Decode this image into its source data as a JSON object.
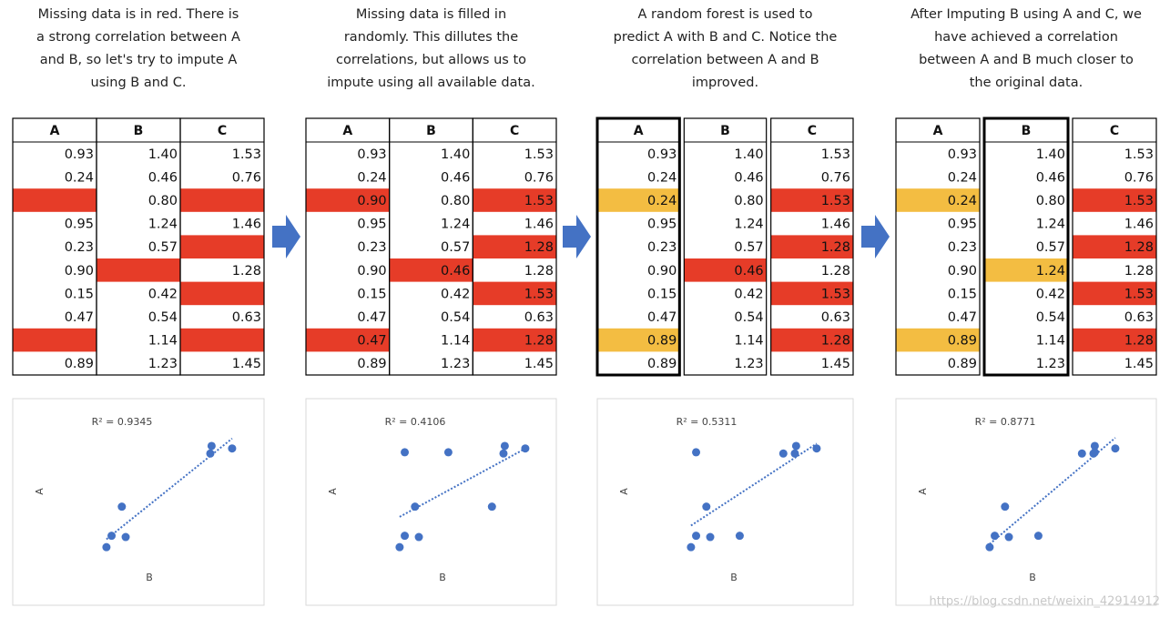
{
  "panels": [
    {
      "caption": [
        "Missing data is in red. There is",
        "a strong correlation between A",
        "and B, so let's try to impute A",
        "using B and C."
      ],
      "table": {
        "columns": [
          "A",
          "B",
          "C"
        ],
        "separated_columns": false,
        "rows": [
          [
            "0.93",
            "1.40",
            "1.53"
          ],
          [
            "0.24",
            "0.46",
            "0.76"
          ],
          [
            null,
            "0.80",
            null
          ],
          [
            "0.95",
            "1.24",
            "1.46"
          ],
          [
            "0.23",
            "0.57",
            null
          ],
          [
            "0.90",
            null,
            "1.28"
          ],
          [
            "0.15",
            "0.42",
            null
          ],
          [
            "0.47",
            "0.54",
            "0.63"
          ],
          [
            null,
            "1.14",
            null
          ],
          [
            "0.89",
            "1.23",
            "1.45"
          ]
        ],
        "fills": [
          [
            null,
            null,
            null
          ],
          [
            null,
            null,
            null
          ],
          [
            "missing",
            null,
            "missing"
          ],
          [
            null,
            null,
            null
          ],
          [
            null,
            null,
            "missing"
          ],
          [
            null,
            "missing",
            null
          ],
          [
            null,
            null,
            "missing"
          ],
          [
            null,
            null,
            null
          ],
          [
            "missing",
            null,
            "missing"
          ],
          [
            null,
            null,
            null
          ]
        ]
      },
      "chart": {
        "type": "scatter",
        "r2_label": "R² = 0.9345",
        "x_label": "B",
        "y_label": "A",
        "color": "#4472c4",
        "xlim": [
          0.3,
          1.5
        ],
        "ylim": [
          0,
          1
        ],
        "x": [
          1.4,
          0.46,
          1.24,
          0.57,
          0.42,
          0.54,
          1.23
        ],
        "y": [
          0.93,
          0.24,
          0.95,
          0.23,
          0.15,
          0.47,
          0.89
        ]
      }
    },
    {
      "caption": [
        "Missing data is filled in",
        "randomly. This dillutes the",
        "correlations, but allows us to",
        "impute using all available data."
      ],
      "table": {
        "columns": [
          "A",
          "B",
          "C"
        ],
        "separated_columns": false,
        "rows": [
          [
            "0.93",
            "1.40",
            "1.53"
          ],
          [
            "0.24",
            "0.46",
            "0.76"
          ],
          [
            "0.90",
            "0.80",
            "1.53"
          ],
          [
            "0.95",
            "1.24",
            "1.46"
          ],
          [
            "0.23",
            "0.57",
            "1.28"
          ],
          [
            "0.90",
            "0.46",
            "1.28"
          ],
          [
            "0.15",
            "0.42",
            "1.53"
          ],
          [
            "0.47",
            "0.54",
            "0.63"
          ],
          [
            "0.47",
            "1.14",
            "1.28"
          ],
          [
            "0.89",
            "1.23",
            "1.45"
          ]
        ],
        "fills": [
          [
            null,
            null,
            null
          ],
          [
            null,
            null,
            null
          ],
          [
            "missing",
            null,
            "missing"
          ],
          [
            null,
            null,
            null
          ],
          [
            null,
            null,
            "missing"
          ],
          [
            null,
            "missing",
            null
          ],
          [
            null,
            null,
            "missing"
          ],
          [
            null,
            null,
            null
          ],
          [
            "missing",
            null,
            "missing"
          ],
          [
            null,
            null,
            null
          ]
        ]
      },
      "chart": {
        "type": "scatter",
        "r2_label": "R² = 0.4106",
        "x_label": "B",
        "y_label": "A",
        "color": "#4472c4",
        "xlim": [
          0.3,
          1.5
        ],
        "ylim": [
          0,
          1
        ],
        "x": [
          1.4,
          0.46,
          0.8,
          1.24,
          0.57,
          0.46,
          0.42,
          0.54,
          1.14,
          1.23
        ],
        "y": [
          0.93,
          0.24,
          0.9,
          0.95,
          0.23,
          0.9,
          0.15,
          0.47,
          0.47,
          0.89
        ]
      }
    },
    {
      "caption": [
        "A random forest is used to",
        "predict A with B and C. Notice the",
        "correlation between A and B",
        "improved."
      ],
      "table": {
        "columns": [
          "A",
          "B",
          "C"
        ],
        "separated_columns": true,
        "outlined_column": "A",
        "rows": [
          [
            "0.93",
            "1.40",
            "1.53"
          ],
          [
            "0.24",
            "0.46",
            "0.76"
          ],
          [
            "0.24",
            "0.80",
            "1.53"
          ],
          [
            "0.95",
            "1.24",
            "1.46"
          ],
          [
            "0.23",
            "0.57",
            "1.28"
          ],
          [
            "0.90",
            "0.46",
            "1.28"
          ],
          [
            "0.15",
            "0.42",
            "1.53"
          ],
          [
            "0.47",
            "0.54",
            "0.63"
          ],
          [
            "0.89",
            "1.14",
            "1.28"
          ],
          [
            "0.89",
            "1.23",
            "1.45"
          ]
        ],
        "fills": [
          [
            null,
            null,
            null
          ],
          [
            null,
            null,
            null
          ],
          [
            "imputed",
            null,
            "missing"
          ],
          [
            null,
            null,
            null
          ],
          [
            null,
            null,
            "missing"
          ],
          [
            null,
            "missing",
            null
          ],
          [
            null,
            null,
            "missing"
          ],
          [
            null,
            null,
            null
          ],
          [
            "imputed",
            null,
            "missing"
          ],
          [
            null,
            null,
            null
          ]
        ]
      },
      "chart": {
        "type": "scatter",
        "r2_label": "R² = 0.5311",
        "x_label": "B",
        "y_label": "A",
        "color": "#4472c4",
        "xlim": [
          0.3,
          1.5
        ],
        "ylim": [
          0,
          1
        ],
        "x": [
          1.4,
          0.46,
          0.8,
          1.24,
          0.57,
          0.46,
          0.42,
          0.54,
          1.14,
          1.23
        ],
        "y": [
          0.93,
          0.24,
          0.24,
          0.95,
          0.23,
          0.9,
          0.15,
          0.47,
          0.89,
          0.89
        ]
      }
    },
    {
      "caption": [
        "After Imputing B using A and C, we",
        "have achieved a correlation",
        "between A and B much closer to",
        "the original data."
      ],
      "table": {
        "columns": [
          "A",
          "B",
          "C"
        ],
        "separated_columns": true,
        "outlined_column": "B",
        "rows": [
          [
            "0.93",
            "1.40",
            "1.53"
          ],
          [
            "0.24",
            "0.46",
            "0.76"
          ],
          [
            "0.24",
            "0.80",
            "1.53"
          ],
          [
            "0.95",
            "1.24",
            "1.46"
          ],
          [
            "0.23",
            "0.57",
            "1.28"
          ],
          [
            "0.90",
            "1.24",
            "1.28"
          ],
          [
            "0.15",
            "0.42",
            "1.53"
          ],
          [
            "0.47",
            "0.54",
            "0.63"
          ],
          [
            "0.89",
            "1.14",
            "1.28"
          ],
          [
            "0.89",
            "1.23",
            "1.45"
          ]
        ],
        "fills": [
          [
            null,
            null,
            null
          ],
          [
            null,
            null,
            null
          ],
          [
            "imputed",
            null,
            "missing"
          ],
          [
            null,
            null,
            null
          ],
          [
            null,
            null,
            "missing"
          ],
          [
            null,
            "imputed",
            null
          ],
          [
            null,
            null,
            "missing"
          ],
          [
            null,
            null,
            null
          ],
          [
            "imputed",
            null,
            "missing"
          ],
          [
            null,
            null,
            null
          ]
        ]
      },
      "chart": {
        "type": "scatter",
        "r2_label": "R² = 0.8771",
        "x_label": "B",
        "y_label": "A",
        "color": "#4472c4",
        "xlim": [
          0.3,
          1.5
        ],
        "ylim": [
          0,
          1
        ],
        "x": [
          1.4,
          0.46,
          0.8,
          1.24,
          0.57,
          1.24,
          0.42,
          0.54,
          1.14,
          1.23
        ],
        "y": [
          0.93,
          0.24,
          0.24,
          0.95,
          0.23,
          0.9,
          0.15,
          0.47,
          0.89,
          0.89
        ]
      }
    }
  ],
  "fill_colors": {
    "missing": "#e63c28",
    "imputed": "#f3bd42"
  },
  "watermark": "https://blog.csdn.net/weixin_42914912"
}
